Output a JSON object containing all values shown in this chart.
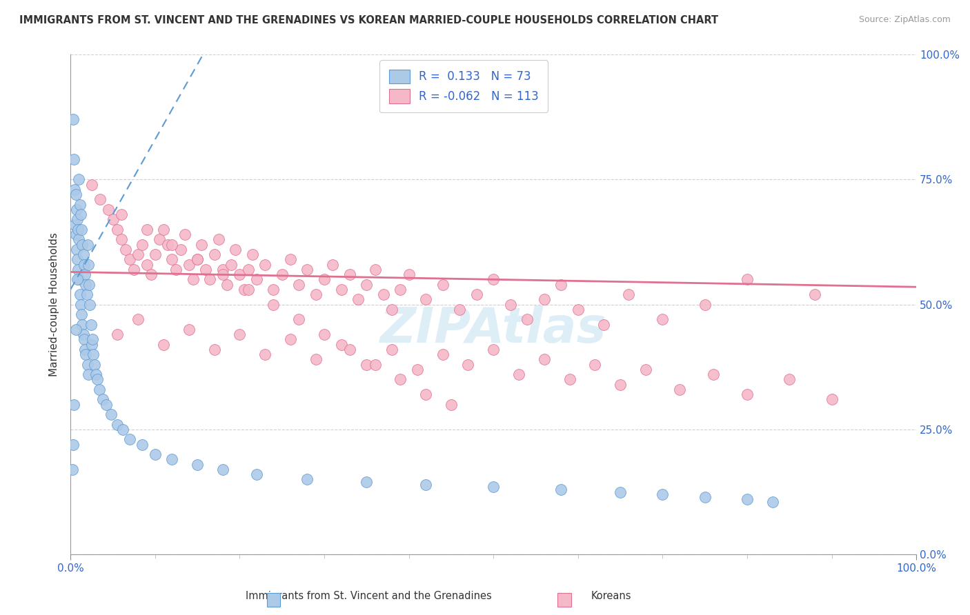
{
  "title": "IMMIGRANTS FROM ST. VINCENT AND THE GRENADINES VS KOREAN MARRIED-COUPLE HOUSEHOLDS CORRELATION CHART",
  "source": "Source: ZipAtlas.com",
  "ylabel": "Married-couple Households",
  "legend_blue_R": "0.133",
  "legend_blue_N": "73",
  "legend_pink_R": "-0.062",
  "legend_pink_N": "113",
  "legend_label_blue": "Immigrants from St. Vincent and the Grenadines",
  "legend_label_pink": "Koreans",
  "blue_color": "#adc9e8",
  "pink_color": "#f5b8c8",
  "blue_edge_color": "#5b9bd5",
  "pink_edge_color": "#e07090",
  "blue_line_color": "#5b9bd5",
  "pink_line_color": "#e07090",
  "watermark_color": "#d0e8f5",
  "blue_x": [
    0.3,
    0.4,
    0.5,
    0.5,
    0.6,
    0.6,
    0.7,
    0.7,
    0.8,
    0.8,
    0.9,
    0.9,
    1.0,
    1.0,
    1.0,
    1.1,
    1.1,
    1.2,
    1.2,
    1.3,
    1.3,
    1.4,
    1.4,
    1.5,
    1.5,
    1.6,
    1.6,
    1.7,
    1.7,
    1.8,
    1.8,
    1.9,
    2.0,
    2.0,
    2.1,
    2.1,
    2.2,
    2.3,
    2.4,
    2.5,
    2.6,
    2.7,
    2.8,
    3.0,
    3.2,
    3.4,
    3.8,
    4.2,
    4.8,
    5.5,
    6.2,
    7.0,
    8.5,
    10.0,
    12.0,
    15.0,
    18.0,
    22.0,
    28.0,
    35.0,
    42.0,
    50.0,
    58.0,
    65.0,
    70.0,
    75.0,
    80.0,
    83.0,
    0.2,
    0.3,
    0.4,
    0.6,
    0.8
  ],
  "blue_y": [
    87.0,
    79.0,
    73.0,
    66.0,
    72.0,
    64.0,
    69.0,
    61.0,
    67.0,
    59.0,
    65.0,
    57.0,
    75.0,
    63.0,
    55.0,
    70.0,
    52.0,
    68.0,
    50.0,
    65.0,
    48.0,
    62.0,
    46.0,
    60.0,
    44.0,
    58.0,
    43.0,
    56.0,
    41.0,
    54.0,
    40.0,
    52.0,
    62.0,
    38.0,
    58.0,
    36.0,
    54.0,
    50.0,
    46.0,
    42.0,
    43.0,
    40.0,
    38.0,
    36.0,
    35.0,
    33.0,
    31.0,
    30.0,
    28.0,
    26.0,
    25.0,
    23.0,
    22.0,
    20.0,
    19.0,
    18.0,
    17.0,
    16.0,
    15.0,
    14.5,
    14.0,
    13.5,
    13.0,
    12.5,
    12.0,
    11.5,
    11.0,
    10.5,
    17.0,
    22.0,
    30.0,
    45.0,
    55.0
  ],
  "pink_x": [
    2.5,
    3.5,
    4.5,
    5.0,
    5.5,
    6.0,
    6.5,
    7.0,
    7.5,
    8.0,
    8.5,
    9.0,
    9.5,
    10.0,
    10.5,
    11.0,
    11.5,
    12.0,
    12.5,
    13.0,
    13.5,
    14.0,
    14.5,
    15.0,
    15.5,
    16.0,
    16.5,
    17.0,
    17.5,
    18.0,
    18.5,
    19.0,
    19.5,
    20.0,
    20.5,
    21.0,
    21.5,
    22.0,
    23.0,
    24.0,
    25.0,
    26.0,
    27.0,
    28.0,
    29.0,
    30.0,
    31.0,
    32.0,
    33.0,
    34.0,
    35.0,
    36.0,
    37.0,
    38.0,
    39.0,
    40.0,
    42.0,
    44.0,
    46.0,
    48.0,
    50.0,
    52.0,
    54.0,
    56.0,
    58.0,
    60.0,
    63.0,
    66.0,
    70.0,
    75.0,
    80.0,
    88.0,
    5.5,
    8.0,
    11.0,
    14.0,
    17.0,
    20.0,
    23.0,
    26.0,
    29.0,
    32.0,
    35.0,
    38.0,
    41.0,
    44.0,
    47.0,
    50.0,
    53.0,
    56.0,
    59.0,
    62.0,
    65.0,
    68.0,
    72.0,
    76.0,
    80.0,
    85.0,
    90.0,
    6.0,
    9.0,
    12.0,
    15.0,
    18.0,
    21.0,
    24.0,
    27.0,
    30.0,
    33.0,
    36.0,
    39.0,
    42.0,
    45.0
  ],
  "pink_y": [
    74.0,
    71.0,
    69.0,
    67.0,
    65.0,
    63.0,
    61.0,
    59.0,
    57.0,
    60.0,
    62.0,
    58.0,
    56.0,
    60.0,
    63.0,
    65.0,
    62.0,
    59.0,
    57.0,
    61.0,
    64.0,
    58.0,
    55.0,
    59.0,
    62.0,
    57.0,
    55.0,
    60.0,
    63.0,
    57.0,
    54.0,
    58.0,
    61.0,
    56.0,
    53.0,
    57.0,
    60.0,
    55.0,
    58.0,
    53.0,
    56.0,
    59.0,
    54.0,
    57.0,
    52.0,
    55.0,
    58.0,
    53.0,
    56.0,
    51.0,
    54.0,
    57.0,
    52.0,
    49.0,
    53.0,
    56.0,
    51.0,
    54.0,
    49.0,
    52.0,
    55.0,
    50.0,
    47.0,
    51.0,
    54.0,
    49.0,
    46.0,
    52.0,
    47.0,
    50.0,
    55.0,
    52.0,
    44.0,
    47.0,
    42.0,
    45.0,
    41.0,
    44.0,
    40.0,
    43.0,
    39.0,
    42.0,
    38.0,
    41.0,
    37.0,
    40.0,
    38.0,
    41.0,
    36.0,
    39.0,
    35.0,
    38.0,
    34.0,
    37.0,
    33.0,
    36.0,
    32.0,
    35.0,
    31.0,
    68.0,
    65.0,
    62.0,
    59.0,
    56.0,
    53.0,
    50.0,
    47.0,
    44.0,
    41.0,
    38.0,
    35.0,
    32.0,
    30.0
  ]
}
